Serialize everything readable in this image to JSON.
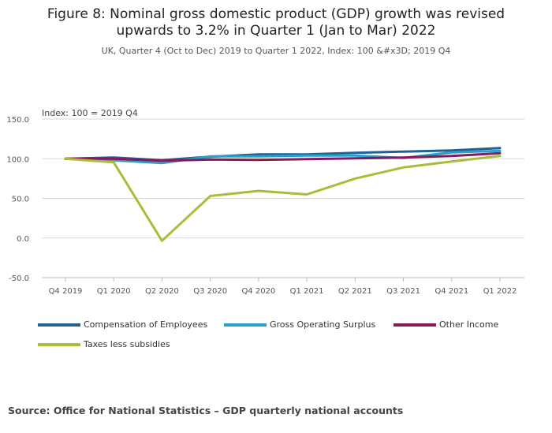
{
  "title_lines": [
    "Figure 8: Nominal gross domestic product (GDP) growth was revised",
    "upwards to 3.2% in Quarter 1 (Jan to Mar) 2022"
  ],
  "subtitle": "UK, Quarter 4 (Oct to Dec) 2019 to Quarter 1 2022, Index: 100 &#x3D; 2019 Q4",
  "source": "Source: Office for National Statistics – GDP quarterly national accounts",
  "chart_data": {
    "type": "line",
    "title": "Figure 8: Nominal gross domestic product (GDP) growth was revised upwards to 3.2% in Quarter 1 (Jan to Mar) 2022",
    "subtitle": "UK, Quarter 4 (Oct to Dec) 2019 to Quarter 1 2022, Index: 100 &#x3D; 2019 Q4",
    "ylabel": "Index: 100 = 2019 Q4",
    "xlabel": "",
    "categories": [
      "Q4 2019",
      "Q1 2020",
      "Q2 2020",
      "Q3 2020",
      "Q4 2020",
      "Q1 2021",
      "Q2 2021",
      "Q3 2021",
      "Q4 2021",
      "Q1 2022"
    ],
    "yticks": [
      "150.0",
      "100.0",
      "50.0",
      "0.0",
      "-50.0"
    ],
    "ytick_values": [
      150,
      100,
      50,
      0,
      -50
    ],
    "ylim": [
      -50,
      150
    ],
    "grid": true,
    "legend_position": "bottom",
    "series": [
      {
        "name": "Compensation of Employees",
        "color": "#206095",
        "values": [
          100,
          101.5,
          98.2,
          102.5,
          105.5,
          105.5,
          107.5,
          109,
          110.5,
          113.5
        ]
      },
      {
        "name": "Gross Operating Surplus",
        "color": "#27a0cc",
        "values": [
          100,
          98,
          94.5,
          103,
          103,
          104,
          104,
          101,
          108,
          110
        ]
      },
      {
        "name": "Other Income",
        "color": "#871a5b",
        "values": [
          100,
          100,
          97.5,
          99,
          98.5,
          99.5,
          100.5,
          101.5,
          103.5,
          107
        ]
      },
      {
        "name": "Taxes less subsidies",
        "color": "#a8bd3a",
        "values": [
          100,
          95.5,
          -3.5,
          53,
          59.5,
          55,
          75,
          89,
          96.5,
          103.5
        ]
      }
    ]
  }
}
